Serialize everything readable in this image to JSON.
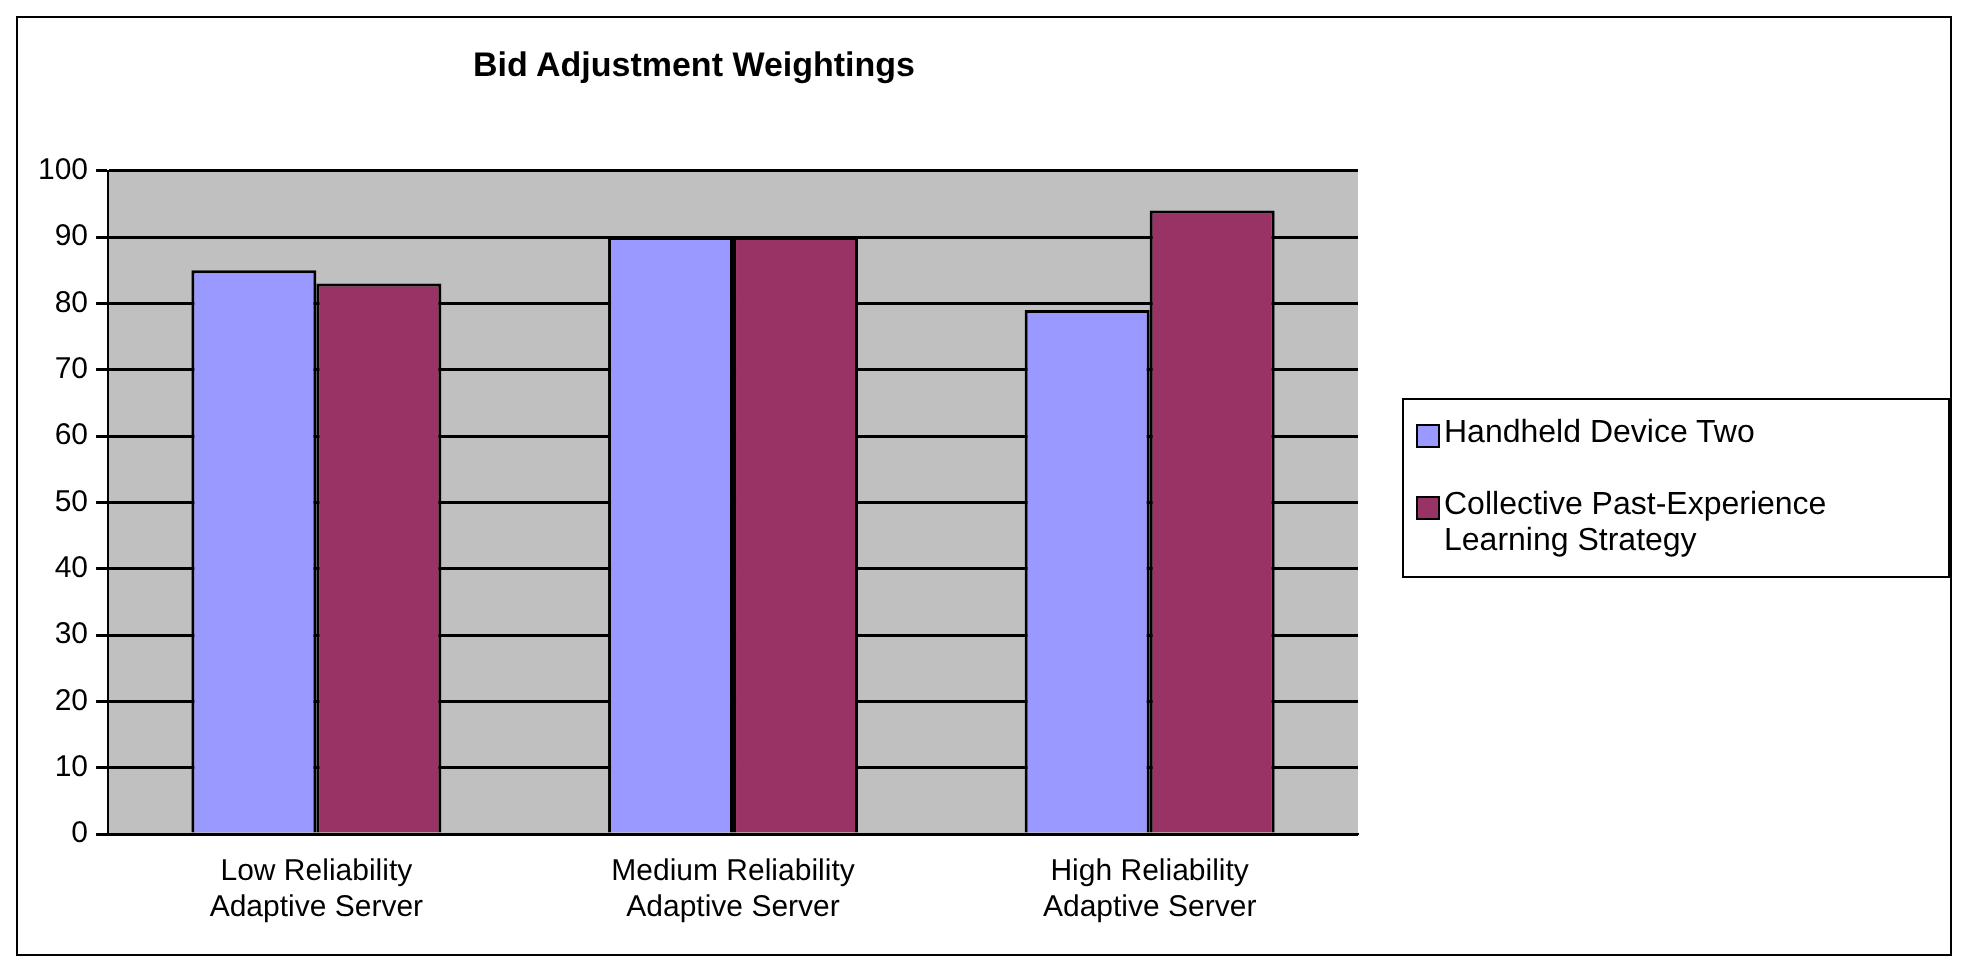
{
  "chart_data": {
    "type": "bar",
    "title": "Bid Adjustment Weightings",
    "categories": [
      "Low Reliability Adaptive Server",
      "Medium Reliability Adaptive Server",
      "High Reliability Adaptive Server"
    ],
    "series": [
      {
        "name": "Handheld Device Two",
        "color": "#9999ff",
        "values": [
          85,
          90,
          79
        ]
      },
      {
        "name": "Collective Past-Experience Learning Strategy",
        "color": "#993366",
        "values": [
          83,
          90,
          94
        ]
      }
    ],
    "ylim": [
      0,
      100
    ],
    "yticks": [
      0,
      10,
      20,
      30,
      40,
      50,
      60,
      70,
      80,
      90,
      100
    ],
    "grid": "y",
    "legend": "right"
  }
}
